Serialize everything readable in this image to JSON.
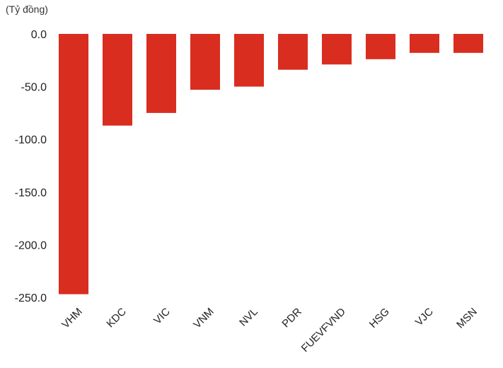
{
  "chart_data": {
    "type": "bar",
    "unit_label": "(Tỷ đồng)",
    "categories": [
      "VHM",
      "KDC",
      "VIC",
      "VNM",
      "NVL",
      "PDR",
      "FUEVFVND",
      "HSG",
      "VJC",
      "MSN"
    ],
    "values": [
      -247,
      -87,
      -75,
      -53,
      -50,
      -34,
      -29,
      -24,
      -18,
      -18
    ],
    "ylim": [
      -250,
      0
    ],
    "yticks": [
      0,
      -50,
      -100,
      -150,
      -200,
      -250
    ],
    "ytick_labels": [
      "0.0",
      "-50.0",
      "-100.0",
      "-150.0",
      "-200.0",
      "-250.0"
    ],
    "bar_color": "#d92d20",
    "grid": false,
    "legend": "none"
  }
}
